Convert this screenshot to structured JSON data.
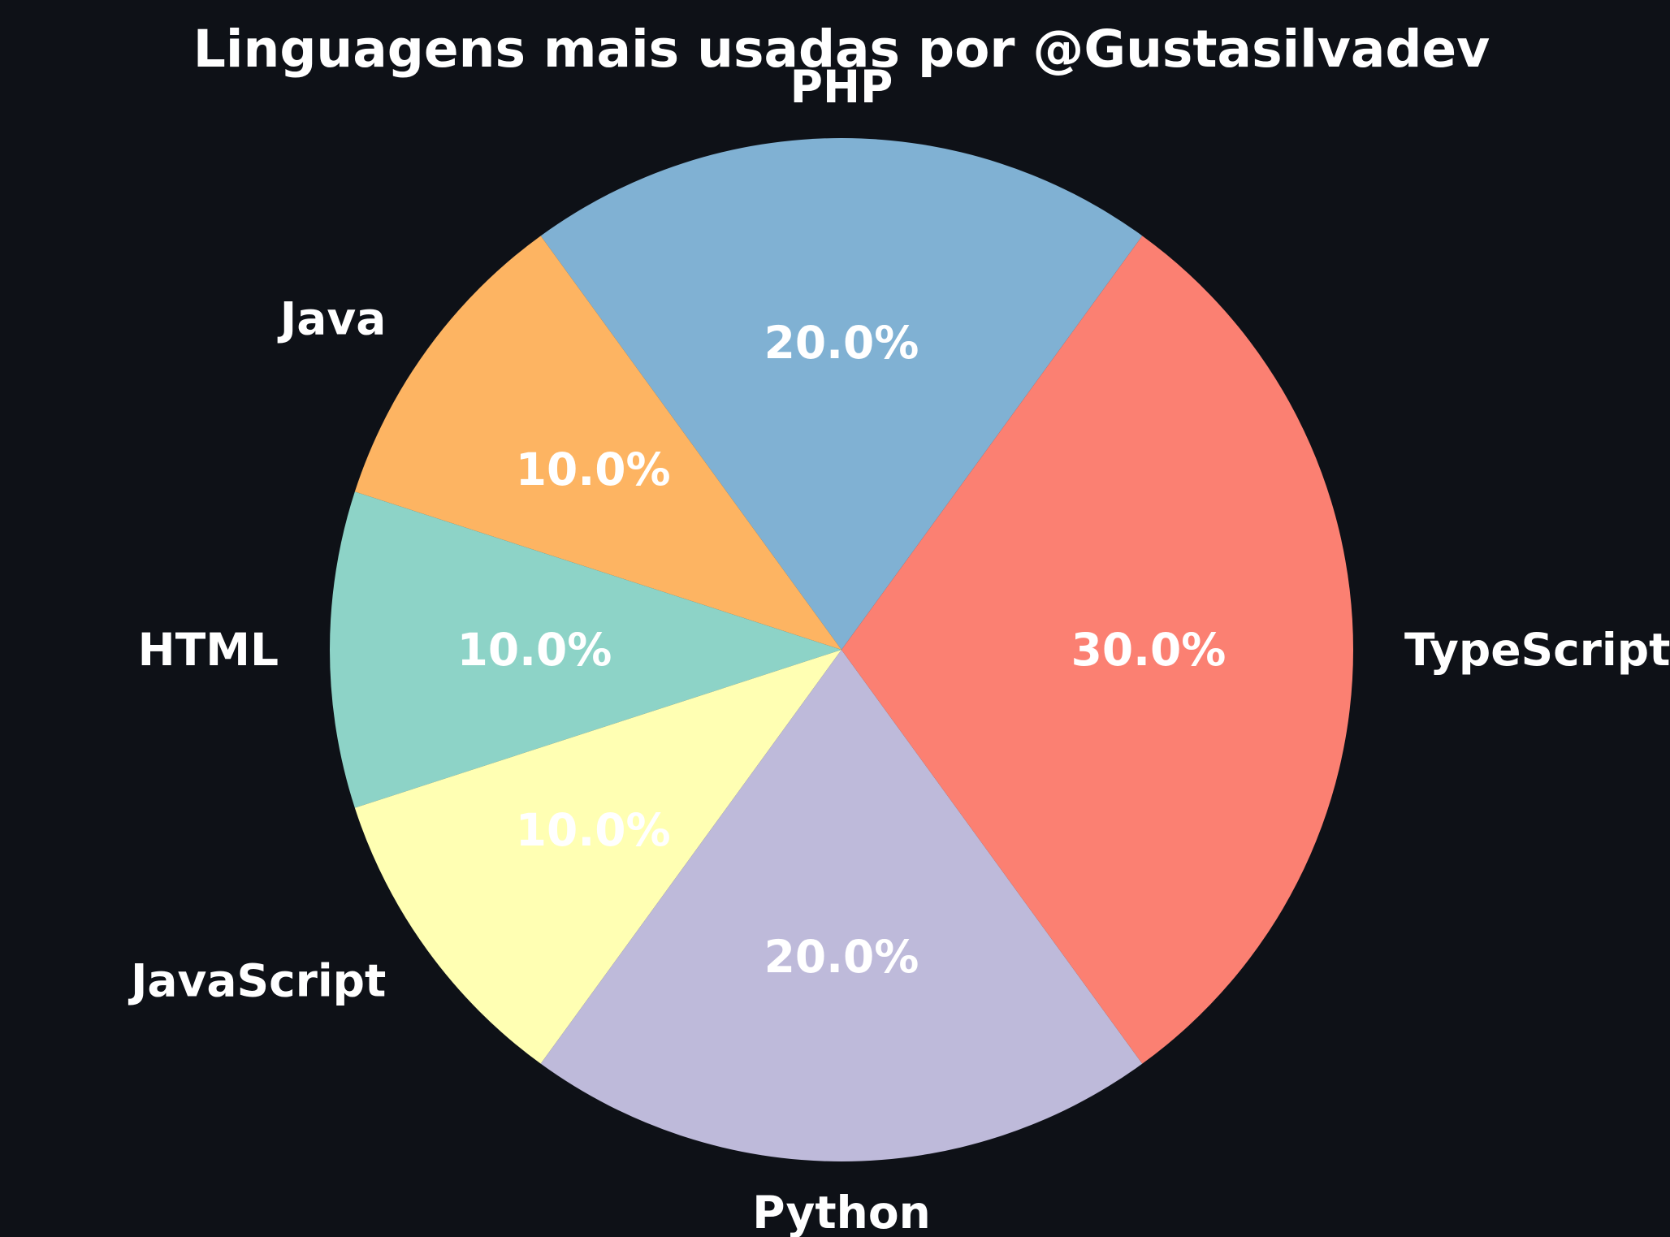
{
  "chart_data": {
    "type": "pie",
    "title": "Linguagens mais usadas por @Gustasilvadev",
    "slices": [
      {
        "label": "PHP",
        "value": 20.0,
        "display": "20.0%",
        "color": "#80b1d3"
      },
      {
        "label": "Java",
        "value": 10.0,
        "display": "10.0%",
        "color": "#fdb462"
      },
      {
        "label": "HTML",
        "value": 10.0,
        "display": "10.0%",
        "color": "#8dd3c7"
      },
      {
        "label": "JavaScript",
        "value": 10.0,
        "display": "10.0%",
        "color": "#ffffb3"
      },
      {
        "label": "Python",
        "value": 20.0,
        "display": "20.0%",
        "color": "#bebada"
      },
      {
        "label": "TypeScript",
        "value": 30.0,
        "display": "30.0%",
        "color": "#fb8072"
      }
    ],
    "start_angle_deg": 54,
    "direction": "counterclockwise",
    "background": "#0e1117",
    "text_color": "#ffffff"
  }
}
